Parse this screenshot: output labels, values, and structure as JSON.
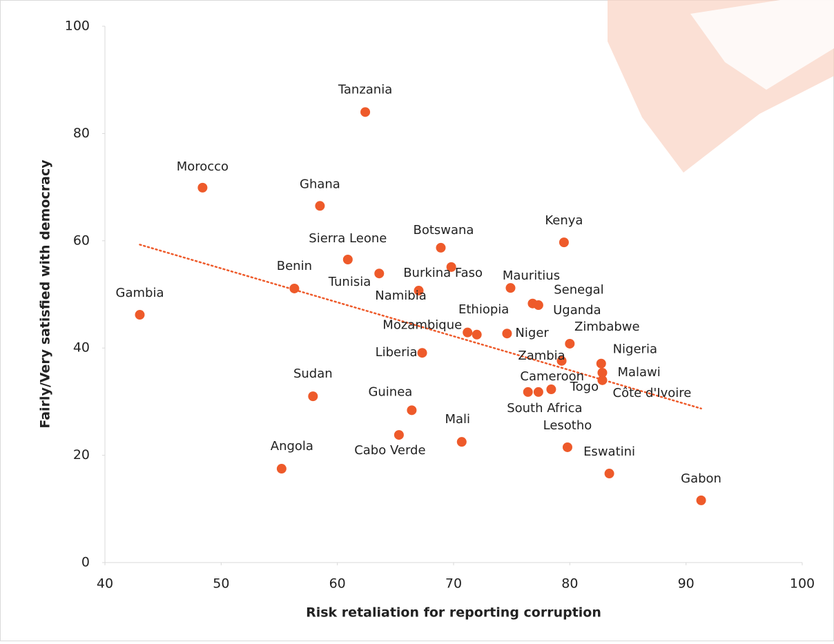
{
  "chart_data": {
    "type": "scatter",
    "x_label": "Risk retaliation for reporting corruption",
    "y_label": "Fairly/Very satisfied with democracy",
    "color": "#ee5a2a",
    "trendline": true,
    "trendline_color": "#ee5a2a",
    "labels": [
      "Gambia",
      "Morocco",
      "Tanzania",
      "Ghana",
      "Sierra Leone",
      "Benin",
      "Tunisia",
      "Botswana",
      "Burkina Faso",
      "Namibia",
      "Mauritius",
      "Kenya",
      "Senegal",
      "Uganda",
      "Ethiopia",
      "Mozambique",
      "Niger",
      "Zimbabwe",
      "Liberia",
      "Zambia",
      "Nigeria",
      "Malawi",
      "Côte d'Ivoire",
      "Cameroon",
      "Togo",
      "South Africa",
      "Sudan",
      "Guinea",
      "Cabo Verde",
      "Mali",
      "Lesotho",
      "Angola",
      "Eswatini",
      "Gabon"
    ],
    "x": [
      43.0,
      48.4,
      62.4,
      58.5,
      60.9,
      56.3,
      63.6,
      68.9,
      69.8,
      67.0,
      74.9,
      79.5,
      76.8,
      77.3,
      72.0,
      71.2,
      74.6,
      80.0,
      67.3,
      79.3,
      82.7,
      82.8,
      82.8,
      76.4,
      78.4,
      77.3,
      57.9,
      66.4,
      65.3,
      70.7,
      79.8,
      55.2,
      83.4,
      91.3
    ],
    "y": [
      46.2,
      69.9,
      84.0,
      66.5,
      56.5,
      51.1,
      53.9,
      58.7,
      55.1,
      50.7,
      51.2,
      59.7,
      48.3,
      48.0,
      42.5,
      42.9,
      42.7,
      40.8,
      39.1,
      37.6,
      37.1,
      35.4,
      34.0,
      31.8,
      32.3,
      31.8,
      31.0,
      28.4,
      23.8,
      22.5,
      21.5,
      17.5,
      16.6,
      11.6
    ],
    "xlim": [
      40,
      100
    ],
    "xticks": [
      40,
      50,
      60,
      70,
      80,
      90,
      100
    ],
    "ylim": [
      0,
      100
    ],
    "yticks": [
      0,
      20,
      40,
      60,
      80,
      100
    ]
  }
}
